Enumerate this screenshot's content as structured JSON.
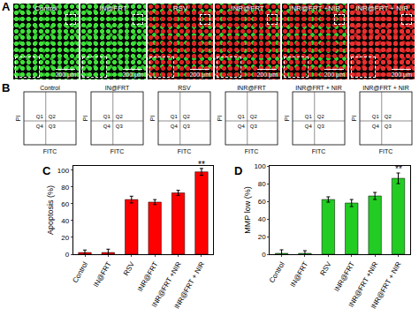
{
  "panel_A": {
    "label": "A",
    "type": "images",
    "images": [
      {
        "title": "Control",
        "scale_bar": "200 μm",
        "color": "green"
      },
      {
        "title": "IN@FRT",
        "scale_bar": "200 μm",
        "color": "green"
      },
      {
        "title": "RSV",
        "scale_bar": "200 μm",
        "color": "red+green"
      },
      {
        "title": "INR@FRT",
        "scale_bar": "200 μm",
        "color": "red+green"
      },
      {
        "title": "INR@FRT +NIR",
        "scale_bar": "200 μm",
        "color": "red+green"
      },
      {
        "title": "INR@FRT + NIR",
        "scale_bar": "200 μm",
        "color": "red"
      }
    ]
  },
  "panel_B": {
    "label": "B",
    "type": "flow",
    "plots": [
      {
        "title": "Control",
        "x_label": "FITC",
        "y_label": "PI",
        "quadrants": [
          "Q1",
          "Q2",
          "Q4",
          "Q3"
        ]
      },
      {
        "title": "IN@FRT",
        "x_label": "FITC",
        "y_label": "PI",
        "quadrants": [
          "Q1",
          "Q2",
          "Q4",
          "Q3"
        ]
      },
      {
        "title": "RSV",
        "x_label": "FITC",
        "y_label": "PI",
        "quadrants": [
          "Q1",
          "Q2",
          "Q4",
          "Q3"
        ]
      },
      {
        "title": "INR@FRT",
        "x_label": "FITC",
        "y_label": "PI",
        "quadrants": [
          "Q1",
          "Q2",
          "Q4",
          "Q3"
        ]
      },
      {
        "title": "INR@FRT + NIR",
        "x_label": "FITC",
        "y_label": "PI",
        "quadrants": [
          "Q1",
          "Q2",
          "Q4",
          "Q3"
        ]
      },
      {
        "title": "INR@FRT + NIR",
        "x_label": "FITC",
        "y_label": "PI",
        "quadrants": [
          "Q1",
          "Q2",
          "Q4",
          "Q3"
        ]
      }
    ]
  },
  "chart_data": [
    {
      "panel": "C",
      "type": "bar",
      "categories": [
        "Control",
        "IN@FRT",
        "RSV",
        "INR@FRT",
        "INR@FRT +NIR",
        "INR@FRT + NIR"
      ],
      "values": [
        2,
        2,
        65,
        62,
        73,
        98
      ],
      "errors": [
        3,
        4,
        4,
        3,
        3,
        4
      ],
      "color": "#ff0000",
      "y_label": "Apoptosis (%)",
      "ylim": [
        0,
        105
      ],
      "yticks": [
        0,
        20,
        40,
        60,
        80,
        100
      ],
      "grid": false,
      "annotations": [
        {
          "category": "INR@FRT + NIR",
          "text": "**"
        }
      ]
    },
    {
      "panel": "D",
      "type": "bar",
      "categories": [
        "Control",
        "IN@FRT",
        "RSV",
        "INR@FRT",
        "INR@FRT +NIR",
        "INR@FRT + NIR"
      ],
      "values": [
        1,
        1,
        62,
        58,
        66,
        86
      ],
      "errors": [
        4,
        3,
        3,
        4,
        4,
        6
      ],
      "color": "#22cc22",
      "y_label": "MMP low (%)",
      "ylim": [
        0,
        100
      ],
      "yticks": [
        0,
        20,
        40,
        60,
        80,
        100
      ],
      "grid": false,
      "annotations": [
        {
          "category": "INR@FRT + NIR",
          "text": "**"
        }
      ]
    }
  ]
}
